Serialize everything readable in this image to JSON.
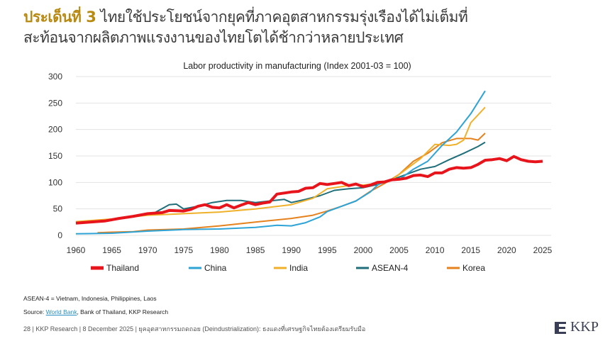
{
  "header": {
    "title_highlight": "ประเด็นที่ 3",
    "title_line1": "ไทยใช้ประโยชน์จากยุคที่ภาคอุตสาหกรรมรุ่งเรืองได้ไม่เต็มที่",
    "title_line2": "สะท้อนจากผลิตภาพแรงงานของไทยโตได้ช้ากว่าหลายประเทศ",
    "highlight_color": "#b88a12"
  },
  "chart_data": {
    "type": "line",
    "title": "Labor productivity in manufacturing (Index 2001-03 = 100)",
    "xlabel": "",
    "ylabel": "",
    "xlim": [
      1960,
      2025
    ],
    "ylim": [
      0,
      300
    ],
    "xticks": [
      1960,
      1965,
      1970,
      1975,
      1980,
      1985,
      1990,
      1995,
      2000,
      2005,
      2010,
      2015,
      2020,
      2025
    ],
    "yticks": [
      0,
      50,
      100,
      150,
      200,
      250,
      300
    ],
    "grid": true,
    "legend": "bottom",
    "series": [
      {
        "name": "Thailand",
        "color": "#e8141c",
        "width": 4,
        "x": [
          1960,
          1962,
          1964,
          1966,
          1968,
          1970,
          1972,
          1973,
          1975,
          1976,
          1977,
          1978,
          1979,
          1980,
          1981,
          1982,
          1983,
          1984,
          1985,
          1986,
          1987,
          1988,
          1989,
          1990,
          1991,
          1992,
          1993,
          1994,
          1995,
          1996,
          1997,
          1998,
          1999,
          2000,
          2001,
          2002,
          2003,
          2004,
          2005,
          2006,
          2007,
          2008,
          2009,
          2010,
          2011,
          2012,
          2013,
          2014,
          2015,
          2016,
          2017,
          2018,
          2019,
          2020,
          2021,
          2022,
          2023,
          2024,
          2025
        ],
        "y": [
          23,
          25,
          27,
          32,
          36,
          41,
          43,
          47,
          46,
          49,
          55,
          58,
          53,
          52,
          58,
          52,
          57,
          62,
          58,
          61,
          63,
          78,
          80,
          82,
          83,
          89,
          90,
          98,
          96,
          98,
          100,
          94,
          97,
          92,
          95,
          100,
          101,
          105,
          106,
          108,
          113,
          114,
          111,
          118,
          118,
          125,
          128,
          127,
          128,
          134,
          142,
          143,
          145,
          141,
          149,
          143,
          140,
          139,
          140
        ]
      },
      {
        "name": "China",
        "color": "#2ea3d6",
        "width": 2,
        "x": [
          1960,
          1965,
          1970,
          1975,
          1980,
          1985,
          1988,
          1990,
          1992,
          1994,
          1995,
          1997,
          1999,
          2001,
          2002,
          2003,
          2005,
          2007,
          2009,
          2011,
          2013,
          2015,
          2017
        ],
        "y": [
          3,
          4,
          8,
          11,
          12,
          15,
          19,
          18,
          24,
          35,
          45,
          55,
          65,
          82,
          95,
          102,
          105,
          125,
          140,
          170,
          195,
          230,
          273
        ]
      },
      {
        "name": "India",
        "color": "#f0b12a",
        "width": 2,
        "x": [
          1960,
          1965,
          1970,
          1975,
          1980,
          1985,
          1990,
          1993,
          1995,
          1997,
          1999,
          2000,
          2002,
          2004,
          2006,
          2008,
          2010,
          2012,
          2013,
          2014,
          2015,
          2017
        ],
        "y": [
          26,
          31,
          38,
          41,
          44,
          50,
          58,
          70,
          88,
          92,
          96,
          95,
          98,
          105,
          125,
          145,
          172,
          170,
          172,
          180,
          213,
          242
        ]
      },
      {
        "name": "ASEAN-4",
        "color": "#1f6e7a",
        "width": 2,
        "x": [
          1971,
          1973,
          1974,
          1975,
          1977,
          1979,
          1981,
          1983,
          1985,
          1987,
          1989,
          1990,
          1992,
          1994,
          1996,
          1998,
          2000,
          2002,
          2004,
          2006,
          2008,
          2010,
          2012,
          2014,
          2016,
          2017
        ],
        "y": [
          43,
          58,
          59,
          50,
          55,
          62,
          66,
          66,
          62,
          65,
          68,
          62,
          68,
          75,
          85,
          88,
          90,
          96,
          105,
          115,
          125,
          130,
          143,
          155,
          168,
          176
        ]
      },
      {
        "name": "Korea",
        "color": "#e6821e",
        "width": 2,
        "x": [
          1963,
          1965,
          1968,
          1970,
          1975,
          1980,
          1985,
          1990,
          1993,
          1995,
          1997,
          1999,
          2001,
          2003,
          2005,
          2007,
          2009,
          2011,
          2013,
          2015,
          2016,
          2017
        ],
        "y": [
          5,
          6,
          7,
          10,
          12,
          18,
          25,
          32,
          38,
          46,
          55,
          65,
          83,
          98,
          115,
          140,
          155,
          175,
          183,
          183,
          180,
          193
        ]
      }
    ]
  },
  "notes": {
    "asean": "ASEAN-4 = Vietnam, Indonesia, Philippines, Laos",
    "source_label": "Source:",
    "source_link": "World Bank",
    "source_rest": ", Bank of Thailand, KKP Research"
  },
  "footer": {
    "text": "28   | KKP Research | 8 December 2025 | ยุคอุตสาหกรรมถดถอย (Deindustrialization): ธงแดงที่เศรษฐกิจไทยต้องเตรียมรับมือ"
  },
  "logo": {
    "text": "KKP"
  }
}
